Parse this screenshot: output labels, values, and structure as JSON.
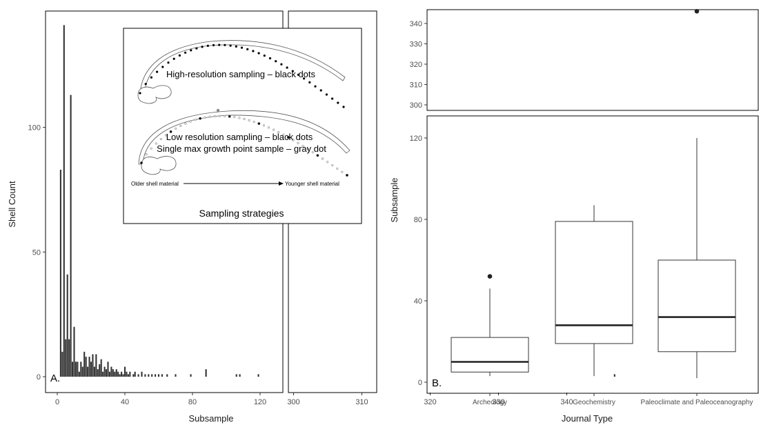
{
  "chart_data": [
    {
      "type": "bar",
      "panel_label": "A.",
      "xlabel": "Subsample",
      "ylabel": "Shell Count",
      "x_break": {
        "segment1_range": [
          -3,
          125
        ],
        "segment2_range": [
          295,
          351
        ]
      },
      "xticks": [
        0,
        40,
        80,
        120,
        300,
        310,
        320,
        330,
        340
      ],
      "yticks": [
        0,
        50,
        100
      ],
      "ylim": [
        0,
        148
      ],
      "bars": [
        {
          "x": 2,
          "y": 83
        },
        {
          "x": 3,
          "y": 10
        },
        {
          "x": 4,
          "y": 141
        },
        {
          "x": 5,
          "y": 15
        },
        {
          "x": 6,
          "y": 41
        },
        {
          "x": 7,
          "y": 15
        },
        {
          "x": 8,
          "y": 113
        },
        {
          "x": 9,
          "y": 6
        },
        {
          "x": 10,
          "y": 20
        },
        {
          "x": 11,
          "y": 6
        },
        {
          "x": 12,
          "y": 6
        },
        {
          "x": 13,
          "y": 2
        },
        {
          "x": 14,
          "y": 6
        },
        {
          "x": 15,
          "y": 4
        },
        {
          "x": 16,
          "y": 10
        },
        {
          "x": 17,
          "y": 8
        },
        {
          "x": 18,
          "y": 4
        },
        {
          "x": 19,
          "y": 8
        },
        {
          "x": 20,
          "y": 6
        },
        {
          "x": 21,
          "y": 9
        },
        {
          "x": 22,
          "y": 4
        },
        {
          "x": 23,
          "y": 9
        },
        {
          "x": 24,
          "y": 3
        },
        {
          "x": 25,
          "y": 5
        },
        {
          "x": 26,
          "y": 7
        },
        {
          "x": 27,
          "y": 2
        },
        {
          "x": 28,
          "y": 4
        },
        {
          "x": 29,
          "y": 3
        },
        {
          "x": 30,
          "y": 6
        },
        {
          "x": 31,
          "y": 2
        },
        {
          "x": 32,
          "y": 4
        },
        {
          "x": 33,
          "y": 3
        },
        {
          "x": 34,
          "y": 2
        },
        {
          "x": 35,
          "y": 3
        },
        {
          "x": 36,
          "y": 2
        },
        {
          "x": 37,
          "y": 1
        },
        {
          "x": 38,
          "y": 2
        },
        {
          "x": 39,
          "y": 1
        },
        {
          "x": 40,
          "y": 4
        },
        {
          "x": 41,
          "y": 2
        },
        {
          "x": 42,
          "y": 1
        },
        {
          "x": 43,
          "y": 2
        },
        {
          "x": 45,
          "y": 1
        },
        {
          "x": 46,
          "y": 2
        },
        {
          "x": 48,
          "y": 1
        },
        {
          "x": 50,
          "y": 2
        },
        {
          "x": 52,
          "y": 1
        },
        {
          "x": 54,
          "y": 1
        },
        {
          "x": 56,
          "y": 1
        },
        {
          "x": 58,
          "y": 1
        },
        {
          "x": 60,
          "y": 1
        },
        {
          "x": 62,
          "y": 1
        },
        {
          "x": 65,
          "y": 1
        },
        {
          "x": 70,
          "y": 1
        },
        {
          "x": 79,
          "y": 1
        },
        {
          "x": 88,
          "y": 3
        },
        {
          "x": 106,
          "y": 1
        },
        {
          "x": 108,
          "y": 1
        },
        {
          "x": 119,
          "y": 1
        },
        {
          "x": 347,
          "y": 1
        }
      ]
    },
    {
      "type": "boxplot",
      "panel_label": "B.",
      "xlabel": "Journal Type",
      "ylabel": "Subsample",
      "categories": [
        "Archeology",
        "Geochemistry",
        "Paleoclimate and Paleoceanography"
      ],
      "boxes": [
        {
          "whisker_low": 3,
          "q1": 5,
          "median": 10,
          "q3": 22,
          "whisker_high": 46,
          "outliers": [
            52
          ]
        },
        {
          "whisker_low": 3,
          "q1": 19,
          "median": 28,
          "q3": 79,
          "whisker_high": 87,
          "outliers": []
        },
        {
          "whisker_low": 2,
          "q1": 15,
          "median": 32,
          "q3": 60,
          "whisker_high": 120,
          "outliers": [
            346
          ]
        }
      ],
      "y_break": {
        "lower_range": [
          -2,
          130
        ],
        "upper_range": [
          297,
          347
        ]
      },
      "yticks_lower": [
        0,
        40,
        80,
        120
      ],
      "yticks_upper": [
        300,
        310,
        320,
        330,
        340
      ]
    }
  ],
  "inset": {
    "title": "Sampling strategies",
    "label_high": "High-resolution sampling – black dots",
    "label_low_1": "Low resolution sampling – black dots",
    "label_low_2": "Single max growth point sample – gray dot",
    "arrow_left": "Older shell material",
    "arrow_right": "Younger shell material"
  }
}
